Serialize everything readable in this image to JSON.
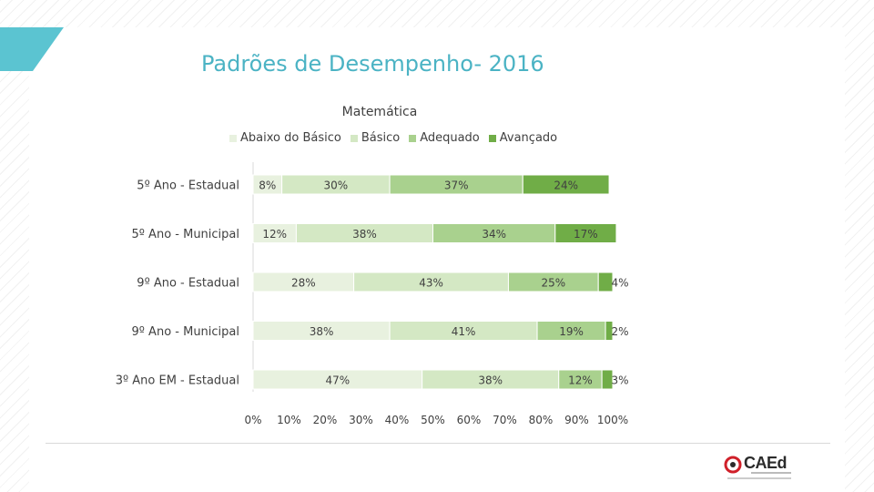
{
  "slide": {
    "title": "Padrões de Desempenho- 2016",
    "brand": "CAEd"
  },
  "chart_data": {
    "type": "bar",
    "orientation": "horizontal",
    "stacked": true,
    "title": "Matemática",
    "categories": [
      "5º Ano - Estadual",
      "5º Ano - Municipal",
      "9º Ano - Estadual",
      "9º Ano - Municipal",
      "3º Ano EM - Estadual"
    ],
    "series": [
      {
        "name": "Abaixo do Básico",
        "color": "#e8f1df",
        "values": [
          8,
          12,
          28,
          38,
          47
        ],
        "labels": [
          "8%",
          "12%",
          "28%",
          "38%",
          "47%"
        ]
      },
      {
        "name": "Básico",
        "color": "#d4e8c4",
        "values": [
          30,
          38,
          43,
          41,
          38
        ],
        "labels": [
          "30%",
          "38%",
          "43%",
          "41%",
          "38%"
        ]
      },
      {
        "name": "Adequado",
        "color": "#a9d18e",
        "values": [
          37,
          34,
          25,
          19,
          12
        ],
        "labels": [
          "37%",
          "34%",
          "25%",
          "19%",
          "12%"
        ]
      },
      {
        "name": "Avançado",
        "color": "#70ad47",
        "values": [
          24,
          17,
          4,
          2,
          3
        ],
        "labels": [
          "24%",
          "17%",
          "4%",
          "2%",
          "3%"
        ]
      }
    ],
    "xlim": [
      0,
      100
    ],
    "xticks": [
      "0%",
      "10%",
      "20%",
      "30%",
      "40%",
      "50%",
      "60%",
      "70%",
      "80%",
      "90%",
      "100%"
    ],
    "legend_position": "top",
    "grid": false
  },
  "colors": {
    "title": "#4bb3c4",
    "accent": "#5bc4d1"
  }
}
